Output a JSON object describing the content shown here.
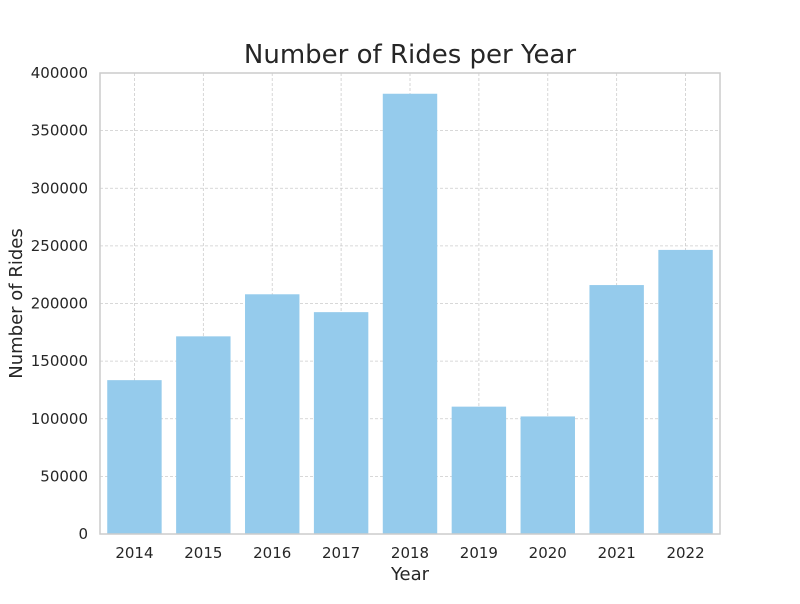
{
  "chart_data": {
    "type": "bar",
    "title": "Number of Rides per Year",
    "xlabel": "Year",
    "ylabel": "Number of Rides",
    "categories": [
      "2014",
      "2015",
      "2016",
      "2017",
      "2018",
      "2019",
      "2020",
      "2021",
      "2022"
    ],
    "values": [
      133500,
      171500,
      208000,
      192500,
      382000,
      110500,
      102000,
      216000,
      246500
    ],
    "ylim": [
      0,
      400000
    ],
    "yticks": [
      0,
      50000,
      100000,
      150000,
      200000,
      250000,
      300000,
      350000,
      400000
    ],
    "grid": true,
    "bar_color": "#95cbec"
  }
}
